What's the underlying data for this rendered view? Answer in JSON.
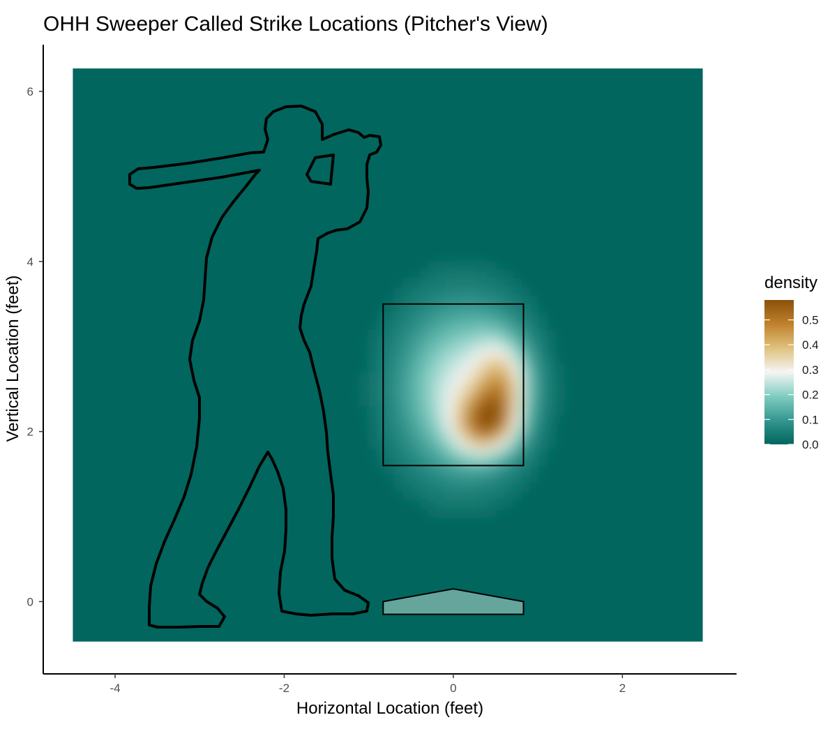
{
  "chart_data": {
    "type": "heatmap",
    "title": "OHH Sweeper Called Strike Locations (Pitcher's View)",
    "xlabel": "Horizontal Location (feet)",
    "ylabel": "Vertical Location (feet)",
    "xlim": [
      -4.85,
      3.35
    ],
    "ylim": [
      -0.85,
      6.55
    ],
    "x_ticks": [
      {
        "value": -4,
        "label": "-4"
      },
      {
        "value": -2,
        "label": "-2"
      },
      {
        "value": 0,
        "label": "0"
      },
      {
        "value": 2,
        "label": "2"
      }
    ],
    "y_ticks": [
      {
        "value": 0,
        "label": "0"
      },
      {
        "value": 2,
        "label": "2"
      },
      {
        "value": 4,
        "label": "4"
      },
      {
        "value": 6,
        "label": "6"
      }
    ],
    "grid": false,
    "heatmap_extent": {
      "x": [
        -4.5,
        2.95
      ],
      "y": [
        -0.47,
        6.27
      ]
    },
    "density_peaks": [
      {
        "x": 0.5,
        "y": 2.15,
        "density": 0.58
      },
      {
        "x": 0.6,
        "y": 2.6,
        "density": 0.47
      },
      {
        "x": 0.25,
        "y": 2.05,
        "density": 0.43
      },
      {
        "x": 0.55,
        "y": 2.95,
        "density": 0.34
      },
      {
        "x": 0.35,
        "y": 3.2,
        "density": 0.28
      }
    ],
    "strike_zone": {
      "x": [
        -0.83,
        0.83
      ],
      "y": [
        1.6,
        3.5
      ]
    },
    "home_plate": {
      "x": [
        -0.83,
        0.83
      ],
      "y": [
        -0.15,
        0.15
      ]
    },
    "legend": {
      "title": "density",
      "position": "right",
      "range": [
        0,
        0.58
      ],
      "ticks": [
        {
          "value": 0.0,
          "label": "0.0"
        },
        {
          "value": 0.1,
          "label": "0.1"
        },
        {
          "value": 0.2,
          "label": "0.2"
        },
        {
          "value": 0.3,
          "label": "0.3"
        },
        {
          "value": 0.4,
          "label": "0.4"
        },
        {
          "value": 0.5,
          "label": "0.5"
        }
      ]
    },
    "colors": {
      "low": "#01665e",
      "low_mid": "#35978f",
      "mid_low": "#80cdc1",
      "mid": "#f5f5f5",
      "mid_high": "#dfc27d",
      "high_mid": "#bf812d",
      "high": "#8c510a",
      "plate_fill": "#66a59c"
    }
  }
}
